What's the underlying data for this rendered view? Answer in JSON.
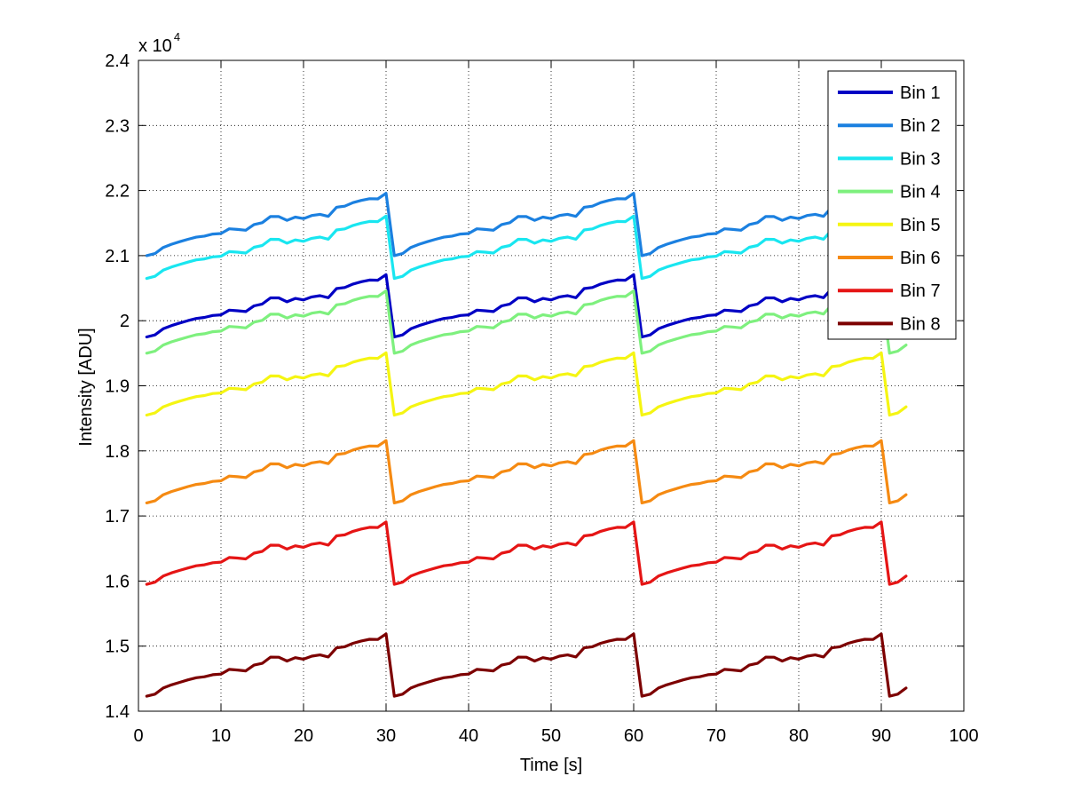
{
  "chart_data": {
    "type": "line",
    "title": "",
    "xlabel": "Time [s]",
    "ylabel": "Intensity [ADU]",
    "xlim": [
      0,
      100
    ],
    "ylim": [
      14000,
      24000
    ],
    "xticks": [
      0,
      10,
      20,
      30,
      40,
      50,
      60,
      70,
      80,
      90,
      100
    ],
    "xtick_labels": [
      "0",
      "10",
      "20",
      "30",
      "40",
      "50",
      "60",
      "70",
      "80",
      "90",
      "100"
    ],
    "yticks": [
      14000,
      15000,
      16000,
      17000,
      18000,
      19000,
      20000,
      21000,
      22000,
      23000,
      24000
    ],
    "ytick_labels": [
      "1.4",
      "1.5",
      "1.6",
      "1.7",
      "1.8",
      "1.9",
      "2",
      "2.1",
      "2.2",
      "2.3",
      "2.4"
    ],
    "y_exponent_base": "x 10",
    "y_exponent_power": "4",
    "grid": true,
    "legend_position": "top-right",
    "x": [
      1,
      2,
      3,
      4,
      5,
      6,
      7,
      8,
      9,
      10,
      11,
      12,
      13,
      14,
      15,
      16,
      17,
      18,
      19,
      20,
      21,
      22,
      23,
      24,
      25,
      26,
      27,
      28,
      29,
      30,
      31,
      32,
      33,
      34,
      35,
      36,
      37,
      38,
      39,
      40,
      41,
      42,
      43,
      44,
      45,
      46,
      47,
      48,
      49,
      50,
      51,
      52,
      53,
      54,
      55,
      56,
      57,
      58,
      59,
      60,
      61,
      62,
      63,
      64,
      65,
      66,
      67,
      68,
      69,
      70,
      71,
      72,
      73,
      74,
      75,
      76,
      77,
      78,
      79,
      80,
      81,
      82,
      83,
      84,
      85,
      86,
      87,
      88,
      89,
      90,
      91,
      92,
      93
    ],
    "pattern_deltas": [
      0,
      32,
      126,
      175,
      214,
      251,
      284,
      300,
      331,
      340,
      412,
      403,
      390,
      478,
      506,
      601,
      600,
      541,
      592,
      569,
      616,
      635,
      603,
      744,
      760,
      814,
      849,
      875,
      872,
      958
    ],
    "series": [
      {
        "name": "Bin 1",
        "color": "#0000c4",
        "start": 19750
      },
      {
        "name": "Bin 2",
        "color": "#1b80e0",
        "start": 21000
      },
      {
        "name": "Bin 3",
        "color": "#19e6f0",
        "start": 20650
      },
      {
        "name": "Bin 4",
        "color": "#7ef07e",
        "start": 19500
      },
      {
        "name": "Bin 5",
        "color": "#f5f512",
        "start": 18550
      },
      {
        "name": "Bin 6",
        "color": "#f58a12",
        "start": 17200
      },
      {
        "name": "Bin 7",
        "color": "#e51515",
        "start": 15950
      },
      {
        "name": "Bin 8",
        "color": "#7d0000",
        "start": 14230
      }
    ]
  }
}
